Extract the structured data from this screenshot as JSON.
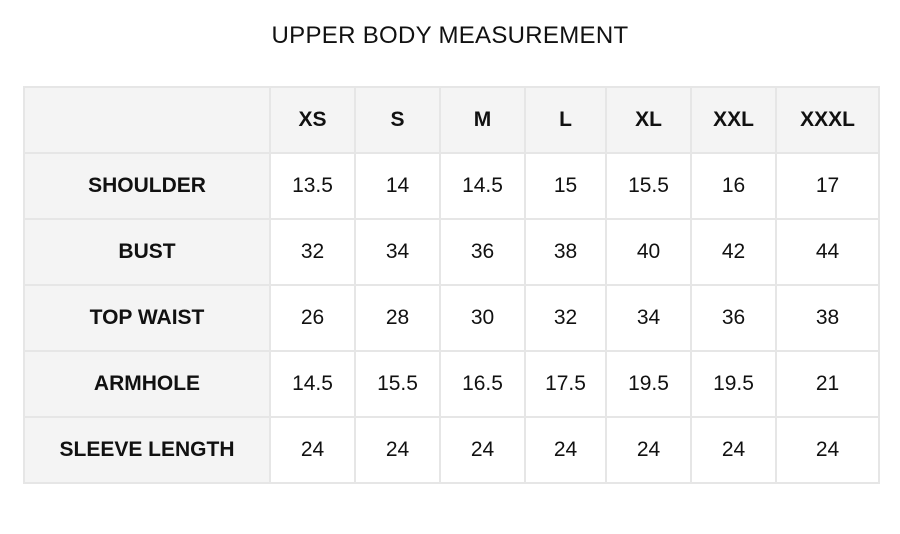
{
  "title": "UPPER BODY MEASUREMENT",
  "table": {
    "sizes": [
      "XS",
      "S",
      "M",
      "L",
      "XL",
      "XXL",
      "XXXL"
    ],
    "rows": [
      {
        "label": "SHOULDER",
        "values": [
          "13.5",
          "14",
          "14.5",
          "15",
          "15.5",
          "16",
          "17"
        ]
      },
      {
        "label": "BUST",
        "values": [
          "32",
          "34",
          "36",
          "38",
          "40",
          "42",
          "44"
        ]
      },
      {
        "label": "TOP WAIST",
        "values": [
          "26",
          "28",
          "30",
          "32",
          "34",
          "36",
          "38"
        ]
      },
      {
        "label": "ARMHOLE",
        "values": [
          "14.5",
          "15.5",
          "16.5",
          "17.5",
          "19.5",
          "19.5",
          "21"
        ]
      },
      {
        "label": "SLEEVE LENGTH",
        "values": [
          "24",
          "24",
          "24",
          "24",
          "24",
          "24",
          "24"
        ]
      }
    ]
  }
}
